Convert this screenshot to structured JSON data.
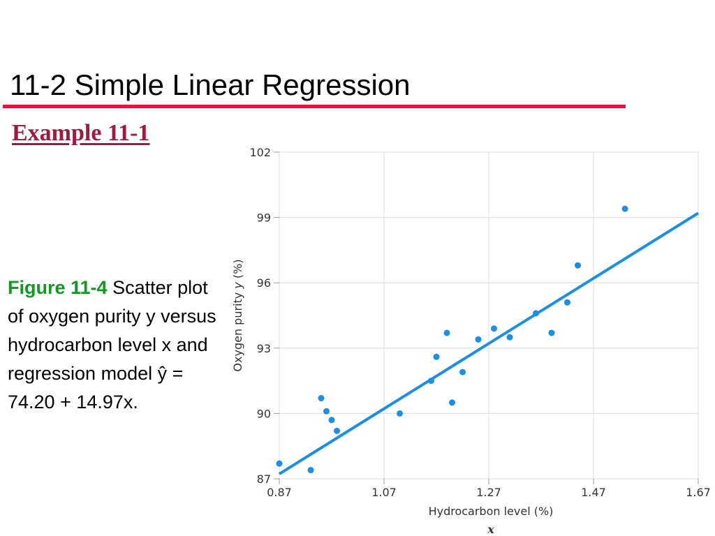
{
  "slide": {
    "title": "11-2 Simple Linear Regression",
    "example_heading": "Example 11-1",
    "caption_label": "Figure 11-4",
    "caption_text": " Scatter plot of oxygen purity y versus hydrocarbon level x and regression model ŷ = 74.20 + 14.97x.",
    "colors": {
      "title_rule": "#e0143c",
      "example_heading": "#9e1b3f",
      "caption_label": "#119a21",
      "series": "#1a8fe6"
    }
  },
  "chart_data": {
    "type": "scatter",
    "xlabel": "Hydrocarbon level (%)",
    "xsymbol": "x",
    "ylabel_prefix": "Oxygen purity ",
    "ylabel_symbol": "y",
    "ylabel_suffix": " (%)",
    "xlim": [
      0.87,
      1.67
    ],
    "ylim": [
      87,
      102
    ],
    "xticks": [
      0.87,
      1.07,
      1.27,
      1.47,
      1.67
    ],
    "xtick_labels": [
      "0.87",
      "1.07",
      "1.27",
      "1.47",
      "1.67"
    ],
    "yticks": [
      87,
      90,
      93,
      96,
      99,
      102
    ],
    "ytick_labels": [
      "87",
      "90",
      "93",
      "96",
      "99",
      "102"
    ],
    "grid": true,
    "points": [
      [
        0.87,
        87.7
      ],
      [
        0.93,
        87.4
      ],
      [
        0.95,
        90.7
      ],
      [
        0.96,
        90.1
      ],
      [
        0.97,
        89.7
      ],
      [
        0.98,
        89.2
      ],
      [
        1.1,
        90.0
      ],
      [
        1.16,
        91.5
      ],
      [
        1.17,
        92.6
      ],
      [
        1.19,
        93.7
      ],
      [
        1.2,
        90.5
      ],
      [
        1.22,
        91.9
      ],
      [
        1.25,
        93.4
      ],
      [
        1.28,
        93.9
      ],
      [
        1.31,
        93.5
      ],
      [
        1.36,
        94.6
      ],
      [
        1.39,
        93.7
      ],
      [
        1.42,
        95.1
      ],
      [
        1.44,
        96.8
      ],
      [
        1.53,
        99.4
      ]
    ],
    "regression": {
      "intercept": 74.2,
      "slope": 14.97,
      "x_range": [
        0.87,
        1.67
      ]
    }
  }
}
